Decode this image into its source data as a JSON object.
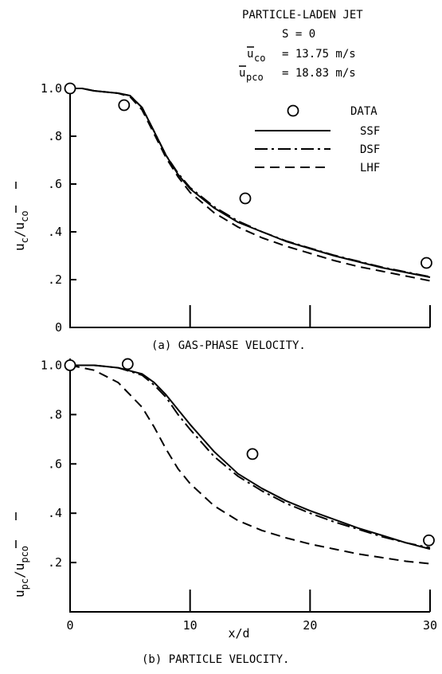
{
  "header": {
    "title": "PARTICLE-LADEN JET",
    "swirl": "S = 0",
    "uco_label": "u",
    "uco_sub": "co",
    "uco_value": "= 13.75 m/s",
    "upco_label": "u",
    "upco_sub": "pco",
    "upco_value": "= 18.83 m/s"
  },
  "legend": {
    "data": "DATA",
    "ssf": "SSF",
    "dsf": "DSF",
    "lhf": "LHF"
  },
  "chart_data": [
    {
      "type": "line",
      "caption": "(a) GAS-PHASE VELOCITY.",
      "xlabel": "",
      "ylabel_main": "u",
      "ylabel_sub": "c",
      "ylabel_div": "/u",
      "ylabel_sub2": "co",
      "xlim": [
        0,
        30
      ],
      "ylim": [
        0,
        1.05
      ],
      "yticks": [
        "0",
        ".2",
        ".4",
        ".6",
        ".8",
        "1.0"
      ],
      "ytick_values": [
        0,
        0.2,
        0.4,
        0.6,
        0.8,
        1.0
      ],
      "xtick_values": [
        0,
        10,
        20,
        30
      ],
      "data_points": {
        "x": [
          0,
          4.5,
          14.6,
          29.7
        ],
        "y": [
          1.0,
          0.93,
          0.54,
          0.27
        ]
      },
      "series": [
        {
          "name": "SSF",
          "style": "solid",
          "x": [
            0,
            1,
            2,
            3,
            4,
            5,
            6,
            7,
            8,
            9,
            10,
            12,
            14,
            16,
            18,
            20,
            22,
            24,
            26,
            28,
            30
          ],
          "y": [
            1.0,
            1.0,
            0.99,
            0.985,
            0.98,
            0.97,
            0.92,
            0.82,
            0.72,
            0.64,
            0.58,
            0.5,
            0.44,
            0.4,
            0.36,
            0.33,
            0.3,
            0.275,
            0.25,
            0.23,
            0.21
          ]
        },
        {
          "name": "DSF",
          "style": "dashdot",
          "x": [
            0,
            1,
            2,
            3,
            4,
            5,
            6,
            7,
            8,
            9,
            10,
            12,
            14,
            16,
            18,
            20,
            22,
            24,
            26,
            28,
            30
          ],
          "y": [
            1.0,
            1.0,
            0.99,
            0.985,
            0.98,
            0.97,
            0.92,
            0.82,
            0.72,
            0.645,
            0.585,
            0.505,
            0.445,
            0.4,
            0.362,
            0.332,
            0.302,
            0.277,
            0.252,
            0.232,
            0.212
          ]
        },
        {
          "name": "LHF",
          "style": "dashed",
          "x": [
            0,
            1,
            2,
            3,
            4,
            5,
            6,
            7,
            8,
            9,
            10,
            12,
            14,
            16,
            18,
            20,
            22,
            24,
            26,
            28,
            30
          ],
          "y": [
            1.0,
            1.0,
            0.99,
            0.985,
            0.98,
            0.965,
            0.91,
            0.81,
            0.71,
            0.63,
            0.565,
            0.48,
            0.42,
            0.375,
            0.34,
            0.31,
            0.28,
            0.255,
            0.235,
            0.215,
            0.195
          ]
        }
      ]
    },
    {
      "type": "line",
      "caption": "(b) PARTICLE VELOCITY.",
      "xlabel": "x/d",
      "ylabel_main": "u",
      "ylabel_sub": "pc",
      "ylabel_div": "/u",
      "ylabel_sub2": "pco",
      "xlim": [
        0,
        30
      ],
      "ylim": [
        0,
        1.05
      ],
      "yticks": [
        ".2",
        ".4",
        ".6",
        ".8",
        "1.0"
      ],
      "ytick_values": [
        0.2,
        0.4,
        0.6,
        0.8,
        1.0
      ],
      "xticks": [
        "0",
        "10",
        "20",
        "30"
      ],
      "xtick_values": [
        0,
        10,
        20,
        30
      ],
      "data_points": {
        "x": [
          0,
          4.8,
          15.2,
          29.9
        ],
        "y": [
          1.0,
          1.005,
          0.64,
          0.29
        ]
      },
      "series": [
        {
          "name": "SSF",
          "style": "solid",
          "x": [
            0,
            2,
            4,
            6,
            7,
            8,
            9,
            10,
            12,
            14,
            16,
            18,
            20,
            22,
            24,
            26,
            28,
            30
          ],
          "y": [
            1.0,
            1.0,
            0.99,
            0.965,
            0.93,
            0.88,
            0.82,
            0.76,
            0.65,
            0.56,
            0.5,
            0.45,
            0.41,
            0.375,
            0.34,
            0.31,
            0.28,
            0.255
          ]
        },
        {
          "name": "DSF",
          "style": "dashdot",
          "x": [
            0,
            2,
            4,
            6,
            7,
            8,
            9,
            10,
            12,
            14,
            16,
            18,
            20,
            22,
            24,
            26,
            28,
            30
          ],
          "y": [
            1.0,
            1.0,
            0.99,
            0.96,
            0.92,
            0.87,
            0.8,
            0.74,
            0.63,
            0.55,
            0.49,
            0.44,
            0.4,
            0.365,
            0.335,
            0.305,
            0.28,
            0.26
          ]
        },
        {
          "name": "LHF",
          "style": "dashed",
          "x": [
            0,
            2,
            4,
            6,
            7,
            8,
            9,
            10,
            12,
            14,
            16,
            18,
            20,
            22,
            24,
            26,
            28,
            30
          ],
          "y": [
            1.0,
            0.98,
            0.93,
            0.83,
            0.75,
            0.66,
            0.58,
            0.52,
            0.43,
            0.37,
            0.33,
            0.3,
            0.275,
            0.255,
            0.235,
            0.22,
            0.205,
            0.195
          ]
        }
      ]
    }
  ]
}
